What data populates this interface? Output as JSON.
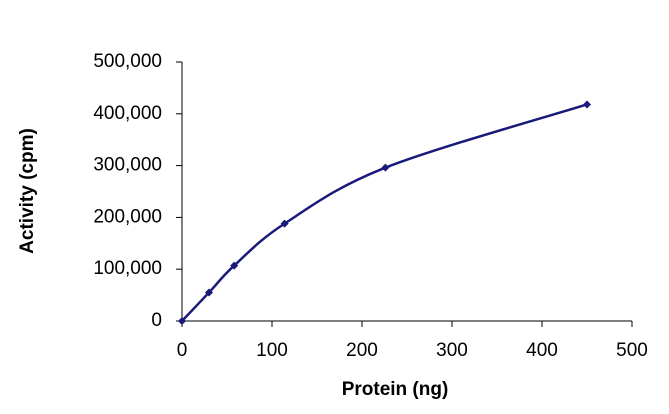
{
  "chart_data": {
    "type": "line",
    "x_label": "Protein (ng)",
    "y_label": "Activity (cpm)",
    "x": [
      0,
      30,
      58,
      114,
      226,
      450
    ],
    "series": [
      {
        "color": "#1a1a7a",
        "values": [
          0,
          55000,
          107000,
          188000,
          296000,
          418000
        ]
      }
    ],
    "xlim": [
      0,
      500
    ],
    "xticks": [
      0,
      100,
      200,
      300,
      400,
      500
    ],
    "ylim": [
      0,
      500000
    ],
    "yticks": [
      0,
      {
        "value": 100000,
        "label": "100,000"
      },
      {
        "value": 200000,
        "label": "200,000"
      },
      {
        "value": 300000,
        "label": "300,000"
      },
      {
        "value": 400000,
        "label": "400,000"
      },
      {
        "value": 500000,
        "label": "500,000"
      }
    ],
    "grid": false,
    "smooth": true,
    "markers": true
  }
}
